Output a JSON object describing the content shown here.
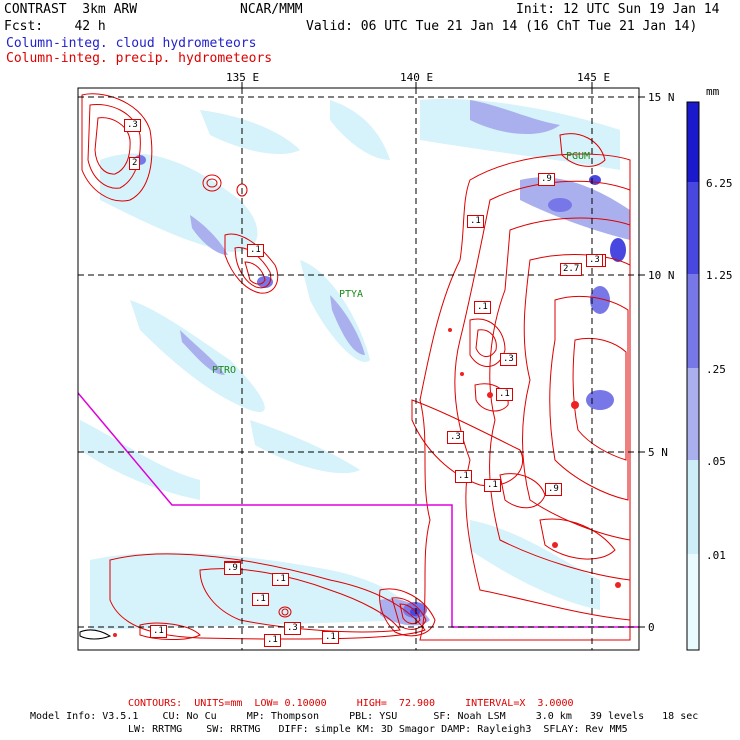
{
  "header": {
    "model": "CONTRAST  3km ARW",
    "forecast": "Fcst:    42 h",
    "center": "NCAR/MMM",
    "init": "Init: 12 UTC Sun 19 Jan 14",
    "valid": "Valid: 06 UTC Tue 21 Jan 14 (16 ChT Tue 21 Jan 14)",
    "field1": "Column-integ. cloud hydrometeors",
    "field2": "Column-integ. precip. hydrometeors"
  },
  "axes": {
    "lon_labels": [
      "135 E",
      "140 E",
      "145 E"
    ],
    "lat_labels": [
      "15 N",
      "10 N",
      "5 N",
      "0"
    ]
  },
  "colorbar": {
    "unit": "mm",
    "levels": [
      "6.25",
      "1.25",
      ".25",
      ".05",
      ".01"
    ],
    "colors": [
      "#1a1acc",
      "#4848e0",
      "#7777e8",
      "#aab0ee",
      "#cdeef8",
      "#eafbff",
      "#ffffff"
    ]
  },
  "stations": [
    "PGUM",
    "PTYA",
    "PTRO"
  ],
  "contour_labels": [
    ".3",
    "2",
    ".1",
    ".1",
    ".9",
    ".1",
    ".3",
    "2.7",
    ".1",
    ".3",
    ".1",
    ".3",
    ".1",
    ".1",
    ".9",
    ".1",
    ".3",
    ".1",
    ".1",
    ".1",
    ".3",
    ".9",
    ".1"
  ],
  "footer": {
    "contours": "CONTOURS:  UNITS=mm  LOW= 0.10000     HIGH=  72.900     INTERVAL=X  3.0000",
    "model_info1": "Model Info: V3.5.1    CU: No Cu     MP: Thompson     PBL: YSU      SF: Noah LSM     3.0 km   39 levels   18 sec",
    "model_info2": "LW: RRTMG    SW: RRTMG   DIFF: simple KM: 3D Smagor DAMP: Rayleigh3  SFLAY: Rev MM5"
  }
}
